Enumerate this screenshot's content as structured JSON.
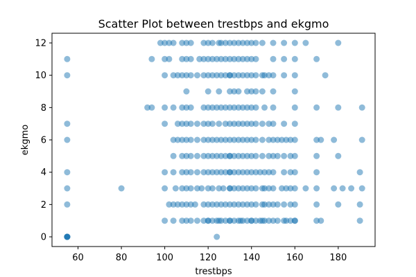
{
  "chart_data": {
    "type": "scatter",
    "title": "Scatter Plot between trestbps and ekgmo",
    "xlabel": "trestbps",
    "ylabel": "ekgmo",
    "xlim": [
      48,
      197
    ],
    "ylim": [
      -0.6,
      12.6
    ],
    "xticks": [
      60,
      80,
      100,
      120,
      140,
      160,
      180
    ],
    "yticks": [
      0,
      2,
      4,
      6,
      8,
      10,
      12
    ],
    "grid": false,
    "point_color": "#1f77b4",
    "point_opacity": 0.5,
    "points": {
      "0": [
        55,
        55,
        55,
        55,
        55,
        55,
        124
      ],
      "1": [
        100,
        104,
        108,
        110,
        112,
        115,
        118,
        120,
        120,
        122,
        124,
        125,
        126,
        128,
        130,
        130,
        132,
        134,
        135,
        136,
        138,
        140,
        140,
        142,
        144,
        145,
        146,
        148,
        150,
        152,
        155,
        156,
        158,
        160,
        160,
        170,
        172,
        190
      ],
      "2": [
        55,
        102,
        104,
        106,
        108,
        110,
        112,
        114,
        118,
        120,
        122,
        124,
        126,
        128,
        130,
        132,
        134,
        136,
        138,
        140,
        142,
        145,
        146,
        148,
        150,
        152,
        155,
        158,
        160,
        170,
        180,
        190
      ],
      "3": [
        55,
        80,
        100,
        105,
        108,
        110,
        112,
        115,
        117,
        120,
        122,
        125,
        127,
        130,
        130,
        132,
        134,
        136,
        138,
        140,
        142,
        145,
        146,
        148,
        150,
        154,
        156,
        158,
        160,
        165,
        170,
        178,
        182,
        186,
        191
      ],
      "4": [
        55,
        100,
        104,
        108,
        110,
        112,
        115,
        118,
        120,
        122,
        124,
        126,
        128,
        130,
        130,
        132,
        134,
        136,
        138,
        140,
        142,
        144,
        146,
        148,
        150,
        155,
        158,
        160,
        170,
        190
      ],
      "5": [
        104,
        108,
        110,
        112,
        115,
        118,
        120,
        122,
        124,
        126,
        128,
        130,
        130,
        132,
        134,
        136,
        138,
        140,
        142,
        145,
        148,
        150,
        152,
        155,
        158,
        160,
        170,
        180
      ],
      "6": [
        55,
        104,
        106,
        108,
        110,
        112,
        115,
        118,
        120,
        122,
        124,
        126,
        128,
        130,
        132,
        134,
        136,
        138,
        140,
        142,
        145,
        148,
        150,
        152,
        154,
        156,
        158,
        160,
        170,
        172,
        178,
        191
      ],
      "7": [
        55,
        100,
        106,
        108,
        110,
        112,
        115,
        118,
        120,
        122,
        125,
        128,
        130,
        132,
        134,
        136,
        138,
        140,
        142,
        145,
        148,
        150,
        155,
        160
      ],
      "8": [
        92,
        94,
        100,
        104,
        108,
        110,
        112,
        118,
        120,
        122,
        124,
        126,
        128,
        130,
        132,
        134,
        136,
        138,
        140,
        142,
        146,
        150,
        160,
        170,
        180,
        191
      ],
      "9": [
        110,
        120,
        125,
        130,
        132,
        134,
        138,
        140,
        142,
        145,
        150,
        160
      ],
      "10": [
        55,
        100,
        104,
        106,
        108,
        110,
        112,
        115,
        118,
        120,
        122,
        124,
        126,
        128,
        130,
        130,
        132,
        134,
        136,
        138,
        140,
        142,
        145,
        146,
        148,
        150,
        155,
        160,
        174
      ],
      "11": [
        55,
        94,
        100,
        102,
        108,
        110,
        112,
        116,
        118,
        120,
        122,
        124,
        126,
        128,
        130,
        132,
        134,
        136,
        138,
        140,
        142,
        150,
        155,
        160,
        170
      ],
      "12": [
        98,
        100,
        102,
        104,
        108,
        110,
        112,
        118,
        120,
        122,
        125,
        126,
        128,
        130,
        132,
        134,
        136,
        138,
        140,
        142,
        145,
        150,
        155,
        160,
        165,
        180
      ]
    }
  }
}
